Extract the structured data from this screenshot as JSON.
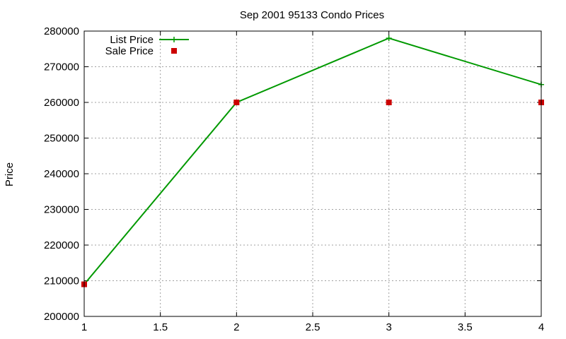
{
  "chart_data": {
    "type": "line",
    "title": "Sep 2001 95133 Condo Prices",
    "xlabel": "",
    "ylabel": "Price",
    "xlim": [
      1,
      4
    ],
    "ylim": [
      200000,
      280000
    ],
    "x_ticks": [
      "1",
      "1.5",
      "2",
      "2.5",
      "3",
      "3.5",
      "4"
    ],
    "y_ticks": [
      "200000",
      "210000",
      "220000",
      "230000",
      "240000",
      "250000",
      "260000",
      "270000",
      "280000"
    ],
    "grid": true,
    "legend_position": "top-left",
    "series": [
      {
        "name": "List Price",
        "style": "line-points",
        "marker": "plus",
        "color": "#009900",
        "x": [
          1,
          2,
          3,
          4
        ],
        "y": [
          209000,
          260000,
          278000,
          265000
        ]
      },
      {
        "name": "Sale Price",
        "style": "points",
        "marker": "square",
        "color": "#cc0000",
        "x": [
          1,
          2,
          3,
          4
        ],
        "y": [
          209000,
          260000,
          260000,
          260000
        ]
      }
    ]
  }
}
